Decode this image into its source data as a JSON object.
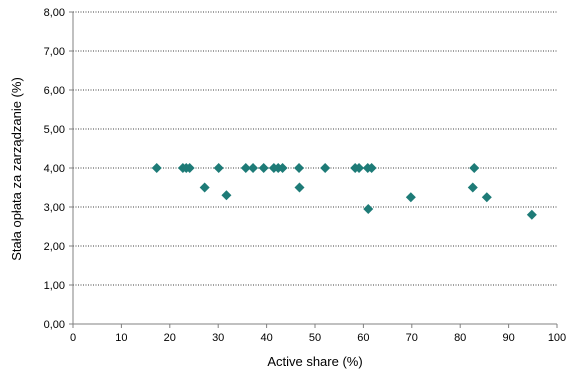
{
  "chart_data": {
    "type": "scatter",
    "title": "",
    "xlabel": "Active share (%)",
    "ylabel": "Stała opłata za zarządzanie (%)",
    "xlim": [
      0,
      100
    ],
    "ylim": [
      0,
      8
    ],
    "x_ticks": [
      0,
      10,
      20,
      30,
      40,
      50,
      60,
      70,
      80,
      90,
      100
    ],
    "x_tick_labels": [
      "0",
      "10",
      "20",
      "30",
      "40",
      "50",
      "60",
      "70",
      "80",
      "90",
      "100"
    ],
    "y_ticks": [
      0,
      1,
      2,
      3,
      4,
      5,
      6,
      7,
      8
    ],
    "y_tick_labels": [
      "0,00",
      "1,00",
      "2,00",
      "3,00",
      "4,00",
      "5,00",
      "6,00",
      "7,00",
      "8,00"
    ],
    "grid": "horizontal-dotted",
    "legend": "none",
    "marker": "diamond",
    "marker_color": "#1E7B77",
    "points": [
      {
        "x": 17.3,
        "y": 4.0
      },
      {
        "x": 22.7,
        "y": 4.0
      },
      {
        "x": 23.4,
        "y": 4.0
      },
      {
        "x": 24.1,
        "y": 4.0
      },
      {
        "x": 27.2,
        "y": 3.5
      },
      {
        "x": 30.1,
        "y": 4.0
      },
      {
        "x": 31.7,
        "y": 3.3
      },
      {
        "x": 35.7,
        "y": 4.0
      },
      {
        "x": 37.2,
        "y": 4.0
      },
      {
        "x": 39.4,
        "y": 4.0
      },
      {
        "x": 41.5,
        "y": 4.0
      },
      {
        "x": 42.4,
        "y": 4.0
      },
      {
        "x": 43.3,
        "y": 4.0
      },
      {
        "x": 46.7,
        "y": 4.0
      },
      {
        "x": 46.8,
        "y": 3.5
      },
      {
        "x": 52.1,
        "y": 4.0
      },
      {
        "x": 58.3,
        "y": 4.0
      },
      {
        "x": 59.1,
        "y": 4.0
      },
      {
        "x": 60.9,
        "y": 4.0
      },
      {
        "x": 61.7,
        "y": 4.0
      },
      {
        "x": 61.0,
        "y": 2.95
      },
      {
        "x": 69.8,
        "y": 3.25
      },
      {
        "x": 82.6,
        "y": 3.5
      },
      {
        "x": 82.9,
        "y": 4.0
      },
      {
        "x": 85.5,
        "y": 3.25
      },
      {
        "x": 94.8,
        "y": 2.8
      }
    ]
  }
}
